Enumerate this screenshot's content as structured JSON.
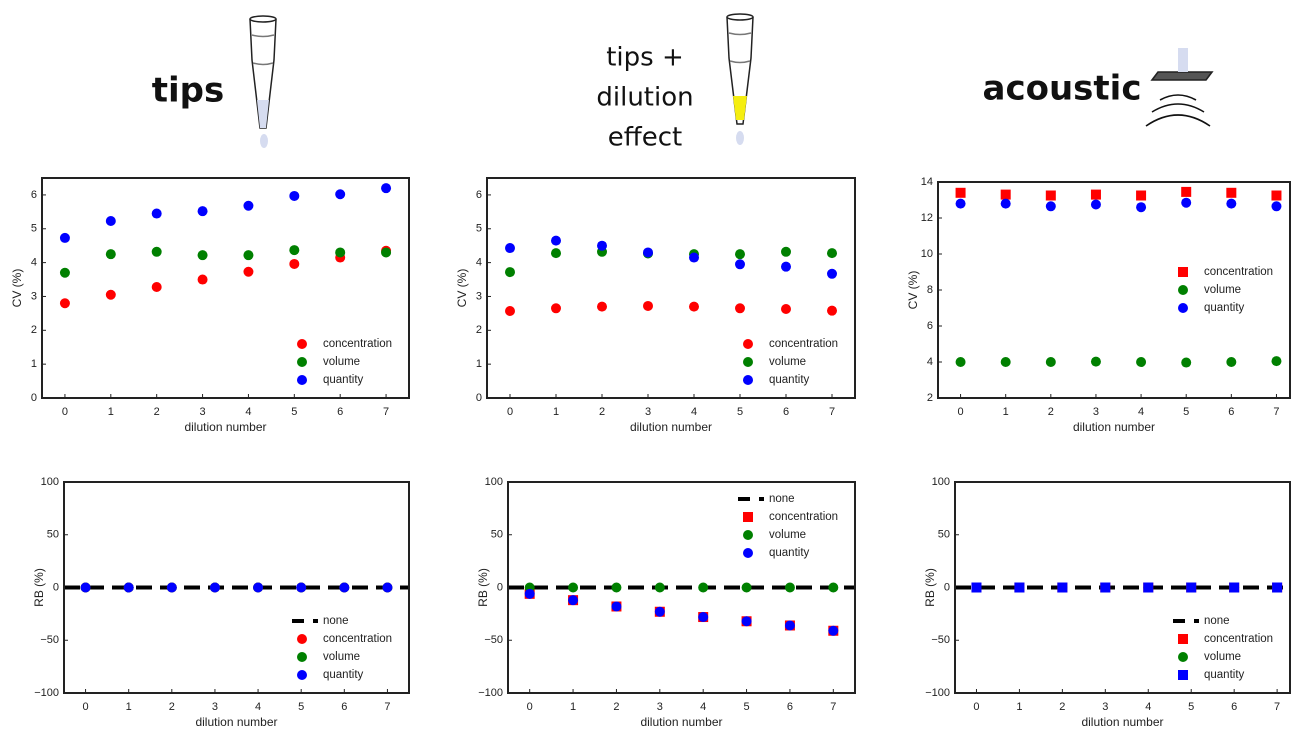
{
  "panel_titles": [
    {
      "lines": [
        "tips"
      ]
    },
    {
      "lines": [
        "tips +",
        "dilution",
        "effect"
      ]
    },
    {
      "lines": [
        "acoustic"
      ]
    }
  ],
  "chart_data": [
    {
      "type": "scatter",
      "xlabel": "dilution number",
      "ylabel": "CV (%)",
      "x": [
        0,
        1,
        2,
        3,
        4,
        5,
        6,
        7
      ],
      "xlim": [
        -0.5,
        7.5
      ],
      "ylim": [
        0,
        6.5
      ],
      "xticks": [
        0,
        1,
        2,
        3,
        4,
        5,
        6,
        7
      ],
      "yticks": [
        0,
        1,
        2,
        3,
        4,
        5,
        6
      ],
      "legend": "lower right",
      "series": [
        {
          "name": "concentration",
          "color": "#ff0000",
          "marker": "circle",
          "values": [
            2.8,
            3.05,
            3.28,
            3.5,
            3.73,
            3.96,
            4.15,
            4.35
          ]
        },
        {
          "name": "volume",
          "color": "#008000",
          "marker": "circle",
          "values": [
            3.7,
            4.25,
            4.32,
            4.22,
            4.22,
            4.37,
            4.3,
            4.3
          ]
        },
        {
          "name": "quantity",
          "color": "#0000ff",
          "marker": "circle",
          "values": [
            4.73,
            5.23,
            5.45,
            5.52,
            5.68,
            5.97,
            6.02,
            6.2
          ]
        }
      ]
    },
    {
      "type": "scatter",
      "xlabel": "dilution number",
      "ylabel": "CV (%)",
      "x": [
        0,
        1,
        2,
        3,
        4,
        5,
        6,
        7
      ],
      "xlim": [
        -0.5,
        7.5
      ],
      "ylim": [
        0,
        6.5
      ],
      "xticks": [
        0,
        1,
        2,
        3,
        4,
        5,
        6,
        7
      ],
      "yticks": [
        0,
        1,
        2,
        3,
        4,
        5,
        6
      ],
      "legend": "lower right",
      "series": [
        {
          "name": "concentration",
          "color": "#ff0000",
          "marker": "circle",
          "values": [
            2.57,
            2.65,
            2.7,
            2.72,
            2.7,
            2.65,
            2.63,
            2.58
          ]
        },
        {
          "name": "volume",
          "color": "#008000",
          "marker": "circle",
          "values": [
            3.72,
            4.28,
            4.32,
            4.27,
            4.25,
            4.25,
            4.32,
            4.28
          ]
        },
        {
          "name": "quantity",
          "color": "#0000ff",
          "marker": "circle",
          "values": [
            4.43,
            4.65,
            4.5,
            4.3,
            4.15,
            3.95,
            3.88,
            3.67
          ]
        }
      ]
    },
    {
      "type": "scatter",
      "xlabel": "dilution number",
      "ylabel": "CV (%)",
      "x": [
        0,
        1,
        2,
        3,
        4,
        5,
        6,
        7
      ],
      "xlim": [
        -0.5,
        7.3
      ],
      "ylim": [
        2,
        14
      ],
      "xticks": [
        0,
        1,
        2,
        3,
        4,
        5,
        6,
        7
      ],
      "yticks": [
        2,
        4,
        6,
        8,
        10,
        12,
        14
      ],
      "legend": "center right",
      "series": [
        {
          "name": "concentration",
          "color": "#ff0000",
          "marker": "square",
          "values": [
            13.4,
            13.3,
            13.25,
            13.3,
            13.25,
            13.45,
            13.4,
            13.25
          ]
        },
        {
          "name": "volume",
          "color": "#008000",
          "marker": "circle",
          "values": [
            4.0,
            4.0,
            4.0,
            4.02,
            4.0,
            3.97,
            4.0,
            4.05
          ]
        },
        {
          "name": "quantity",
          "color": "#0000ff",
          "marker": "circle",
          "values": [
            12.8,
            12.8,
            12.65,
            12.75,
            12.6,
            12.85,
            12.8,
            12.65
          ]
        }
      ]
    },
    {
      "type": "scatter",
      "xlabel": "dilution number",
      "ylabel": "RB (%)",
      "x": [
        0,
        1,
        2,
        3,
        4,
        5,
        6,
        7
      ],
      "xlim": [
        -0.5,
        7.5
      ],
      "ylim": [
        -100,
        100
      ],
      "xticks": [
        0,
        1,
        2,
        3,
        4,
        5,
        6,
        7
      ],
      "yticks": [
        {
          "value": -100,
          "label": "−100"
        },
        {
          "value": -50,
          "label": "−50"
        },
        0,
        50,
        100
      ],
      "legend": "lower right",
      "reference_line": {
        "name": "none",
        "value": 0,
        "color": "#000000"
      },
      "series": [
        {
          "name": "concentration",
          "color": "#ff0000",
          "marker": "circle",
          "values": [
            0,
            0,
            0,
            0,
            0,
            0,
            0,
            0
          ]
        },
        {
          "name": "volume",
          "color": "#008000",
          "marker": "circle",
          "values": [
            0,
            0,
            0,
            0,
            0,
            0,
            0,
            0
          ]
        },
        {
          "name": "quantity",
          "color": "#0000ff",
          "marker": "circle",
          "values": [
            0,
            0,
            0,
            0,
            0,
            0,
            0,
            0
          ]
        }
      ]
    },
    {
      "type": "scatter",
      "xlabel": "dilution number",
      "ylabel": "RB (%)",
      "x": [
        0,
        1,
        2,
        3,
        4,
        5,
        6,
        7
      ],
      "xlim": [
        -0.5,
        7.5
      ],
      "ylim": [
        -100,
        100
      ],
      "xticks": [
        0,
        1,
        2,
        3,
        4,
        5,
        6,
        7
      ],
      "yticks": [
        {
          "value": -100,
          "label": "−100"
        },
        {
          "value": -50,
          "label": "−50"
        },
        0,
        50,
        100
      ],
      "legend": "upper right",
      "reference_line": {
        "name": "none",
        "value": 0,
        "color": "#000000"
      },
      "series": [
        {
          "name": "concentration",
          "color": "#ff0000",
          "marker": "square",
          "values": [
            -6,
            -12,
            -18,
            -23,
            -28,
            -32,
            -36,
            -41
          ]
        },
        {
          "name": "volume",
          "color": "#008000",
          "marker": "circle",
          "values": [
            0,
            0,
            0,
            0,
            0,
            0,
            0,
            0
          ]
        },
        {
          "name": "quantity",
          "color": "#0000ff",
          "marker": "circle",
          "values": [
            -6,
            -12,
            -18,
            -23,
            -28,
            -32,
            -36,
            -41
          ]
        }
      ]
    },
    {
      "type": "scatter",
      "xlabel": "dilution number",
      "ylabel": "RB (%)",
      "x": [
        0,
        1,
        2,
        3,
        4,
        5,
        6,
        7
      ],
      "xlim": [
        -0.5,
        7.3
      ],
      "ylim": [
        -100,
        100
      ],
      "xticks": [
        0,
        1,
        2,
        3,
        4,
        5,
        6,
        7
      ],
      "yticks": [
        {
          "value": -100,
          "label": "−100"
        },
        {
          "value": -50,
          "label": "−50"
        },
        0,
        50,
        100
      ],
      "legend": "lower right",
      "reference_line": {
        "name": "none",
        "value": 0,
        "color": "#000000"
      },
      "series": [
        {
          "name": "concentration",
          "color": "#ff0000",
          "marker": "square",
          "values": [
            0,
            0,
            0,
            0,
            0,
            0,
            0,
            0
          ]
        },
        {
          "name": "volume",
          "color": "#008000",
          "marker": "circle",
          "values": [
            0,
            0,
            0,
            0,
            0,
            0,
            0,
            0
          ]
        },
        {
          "name": "quantity",
          "color": "#0000ff",
          "marker": "square",
          "values": [
            0,
            0,
            0,
            0,
            0,
            0,
            0,
            0
          ]
        }
      ]
    }
  ]
}
